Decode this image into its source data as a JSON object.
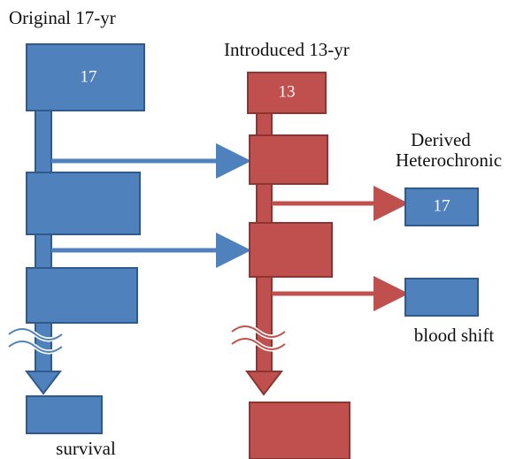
{
  "original": {
    "title": "Original 17-yr",
    "box_label": "17",
    "end_label": "survival"
  },
  "introduced": {
    "title": "Introduced 13-yr",
    "box_label": "13"
  },
  "derived": {
    "title_lines": [
      "Derived",
      "Heterochronic"
    ],
    "box_label": "17",
    "shift_label": "blood shift"
  }
}
